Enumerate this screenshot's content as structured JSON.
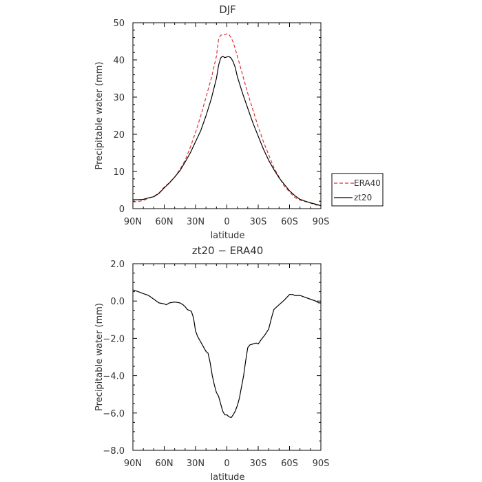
{
  "legend": {
    "position": "right-middle",
    "items": [
      {
        "label": "ERA40",
        "color": "#e03030",
        "dash": true
      },
      {
        "label": "zt20",
        "color": "#000000",
        "dash": false
      }
    ]
  },
  "chart_data": [
    {
      "type": "line",
      "title": "DJF",
      "xlabel": "latitude",
      "ylabel": "Precipitable water (mm)",
      "xlim": [
        90,
        -90
      ],
      "ylim": [
        0,
        50
      ],
      "xticks": [
        90,
        60,
        30,
        0,
        -30,
        -60,
        -90
      ],
      "xtick_labels": [
        "90N",
        "60N",
        "30N",
        "0",
        "30S",
        "60S",
        "90S"
      ],
      "yticks": [
        0,
        10,
        20,
        30,
        40,
        50
      ],
      "ytick_labels": [
        "0",
        "10",
        "20",
        "30",
        "40",
        "50"
      ],
      "series": [
        {
          "name": "ERA40",
          "color": "#e03030",
          "style": "dashed",
          "x": [
            90,
            85,
            80,
            75,
            70,
            65,
            60,
            55,
            50,
            45,
            40,
            35,
            30,
            25,
            20,
            15,
            10,
            8,
            6,
            4,
            2,
            0,
            -2,
            -4,
            -6,
            -8,
            -10,
            -15,
            -20,
            -25,
            -30,
            -35,
            -40,
            -45,
            -50,
            -55,
            -60,
            -65,
            -70,
            -75,
            -80,
            -85,
            -90
          ],
          "y": [
            1.8,
            1.9,
            2.2,
            2.8,
            3.3,
            4.2,
            5.8,
            7.0,
            8.5,
            10.5,
            13.0,
            16.5,
            20.5,
            25.0,
            30.0,
            35.0,
            41.0,
            45.5,
            46.6,
            46.8,
            46.8,
            47.0,
            46.8,
            46.0,
            44.8,
            43.0,
            41.0,
            36.0,
            31.0,
            26.5,
            22.0,
            18.0,
            14.5,
            11.0,
            8.5,
            6.0,
            4.5,
            3.0,
            2.3,
            1.9,
            1.5,
            1.0,
            0.8
          ]
        },
        {
          "name": "zt20",
          "color": "#000000",
          "style": "solid",
          "x": [
            90,
            85,
            80,
            75,
            70,
            65,
            60,
            55,
            50,
            45,
            40,
            35,
            30,
            25,
            20,
            15,
            10,
            8,
            6,
            4,
            2,
            0,
            -2,
            -4,
            -6,
            -8,
            -10,
            -15,
            -20,
            -25,
            -30,
            -35,
            -40,
            -45,
            -50,
            -55,
            -60,
            -65,
            -70,
            -75,
            -80,
            -85,
            -90
          ],
          "y": [
            2.4,
            2.4,
            2.5,
            2.9,
            3.2,
            4.1,
            5.6,
            6.9,
            8.5,
            10.2,
            12.5,
            15.0,
            18.0,
            21.0,
            25.0,
            29.5,
            35.0,
            38.5,
            40.5,
            41.0,
            40.6,
            40.8,
            40.9,
            40.5,
            39.5,
            38.0,
            35.5,
            31.0,
            27.0,
            23.0,
            19.5,
            16.0,
            13.0,
            10.5,
            8.3,
            6.5,
            4.8,
            3.5,
            2.5,
            2.0,
            1.6,
            1.2,
            0.8
          ]
        }
      ]
    },
    {
      "type": "line",
      "title": "zt20 − ERA40",
      "xlabel": "latitude",
      "ylabel": "Precipitable water (mm)",
      "xlim": [
        90,
        -90
      ],
      "ylim": [
        -8,
        2
      ],
      "xticks": [
        90,
        60,
        30,
        0,
        -30,
        -60,
        -90
      ],
      "xtick_labels": [
        "90N",
        "60N",
        "30N",
        "0",
        "30S",
        "60S",
        "90S"
      ],
      "yticks": [
        2,
        0,
        -2,
        -4,
        -6,
        -8
      ],
      "ytick_labels": [
        "2.0",
        "0.0",
        "−2.0",
        "−4.0",
        "−6.0",
        "−8.0"
      ],
      "series": [
        {
          "name": "zt20 − ERA40",
          "color": "#000000",
          "style": "solid",
          "x": [
            90,
            85,
            80,
            75,
            70,
            65,
            60,
            58,
            55,
            50,
            45,
            42,
            40,
            38,
            36,
            34,
            32,
            30,
            28,
            25,
            22,
            20,
            18,
            16,
            14,
            12,
            10,
            8,
            6,
            4,
            2,
            0,
            -2,
            -4,
            -6,
            -8,
            -10,
            -12,
            -14,
            -16,
            -18,
            -20,
            -22,
            -25,
            -28,
            -30,
            -33,
            -36,
            -40,
            -43,
            -45,
            -48,
            -50,
            -55,
            -60,
            -63,
            -65,
            -70,
            -75,
            -80,
            -85,
            -88,
            -90
          ],
          "y": [
            0.6,
            0.5,
            0.4,
            0.3,
            0.1,
            -0.1,
            -0.15,
            -0.2,
            -0.1,
            -0.05,
            -0.1,
            -0.2,
            -0.3,
            -0.45,
            -0.5,
            -0.55,
            -0.9,
            -1.6,
            -1.9,
            -2.2,
            -2.5,
            -2.7,
            -2.8,
            -3.3,
            -4.0,
            -4.5,
            -4.9,
            -5.1,
            -5.5,
            -5.9,
            -6.1,
            -6.1,
            -6.2,
            -6.25,
            -6.1,
            -5.9,
            -5.6,
            -5.2,
            -4.6,
            -4.0,
            -3.2,
            -2.5,
            -2.35,
            -2.3,
            -2.25,
            -2.3,
            -2.05,
            -1.85,
            -1.5,
            -0.85,
            -0.45,
            -0.3,
            -0.2,
            0.05,
            0.35,
            0.35,
            0.3,
            0.3,
            0.2,
            0.1,
            0.0,
            -0.1,
            -0.1
          ]
        }
      ]
    }
  ]
}
